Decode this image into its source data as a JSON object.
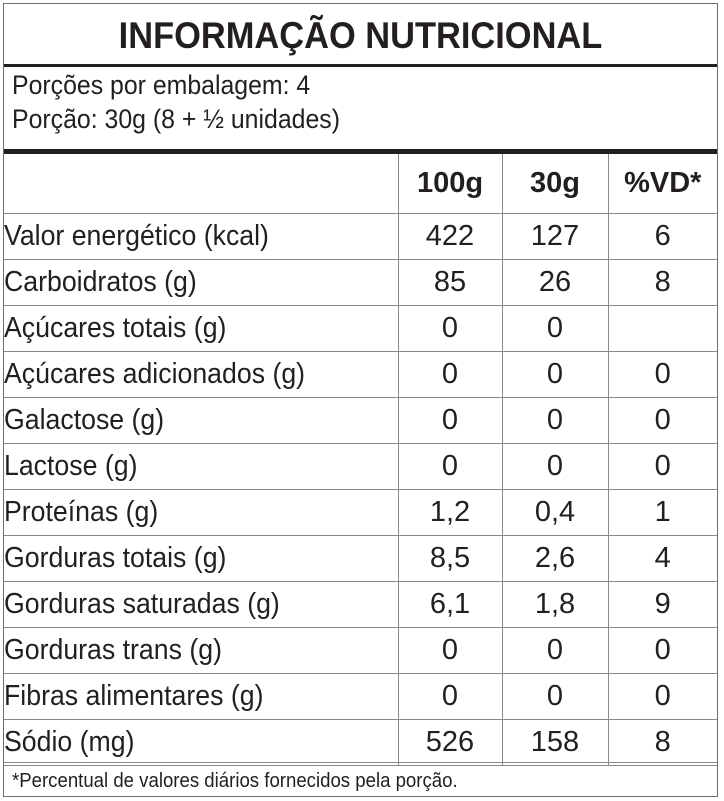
{
  "title": "INFORMAÇÃO NUTRICIONAL",
  "servings_per_package": "Porções por embalagem: 4",
  "serving_size": "Porção: 30g (8 + ½ unidades)",
  "columns": [
    "",
    "100g",
    "30g",
    "%VD*"
  ],
  "rows": [
    {
      "label": "Valor energético (kcal)",
      "per100g": "422",
      "per30g": "127",
      "vd": "6"
    },
    {
      "label": "Carboidratos (g)",
      "per100g": "85",
      "per30g": "26",
      "vd": "8"
    },
    {
      "label": "Açúcares totais (g)",
      "per100g": "0",
      "per30g": "0",
      "vd": ""
    },
    {
      "label": "Açúcares adicionados (g)",
      "per100g": "0",
      "per30g": "0",
      "vd": "0"
    },
    {
      "label": "Galactose (g)",
      "per100g": "0",
      "per30g": "0",
      "vd": "0"
    },
    {
      "label": "Lactose (g)",
      "per100g": "0",
      "per30g": "0",
      "vd": "0"
    },
    {
      "label": "Proteínas (g)",
      "per100g": "1,2",
      "per30g": "0,4",
      "vd": "1"
    },
    {
      "label": "Gorduras totais (g)",
      "per100g": "8,5",
      "per30g": "2,6",
      "vd": "4"
    },
    {
      "label": "Gorduras saturadas (g)",
      "per100g": "6,1",
      "per30g": "1,8",
      "vd": "9"
    },
    {
      "label": "Gorduras trans (g)",
      "per100g": "0",
      "per30g": "0",
      "vd": "0"
    },
    {
      "label": "Fibras alimentares (g)",
      "per100g": "0",
      "per30g": "0",
      "vd": "0"
    },
    {
      "label": "Sódio (mg)",
      "per100g": "526",
      "per30g": "158",
      "vd": "8"
    }
  ],
  "footnote": "*Percentual de valores diários fornecidos pela porção."
}
